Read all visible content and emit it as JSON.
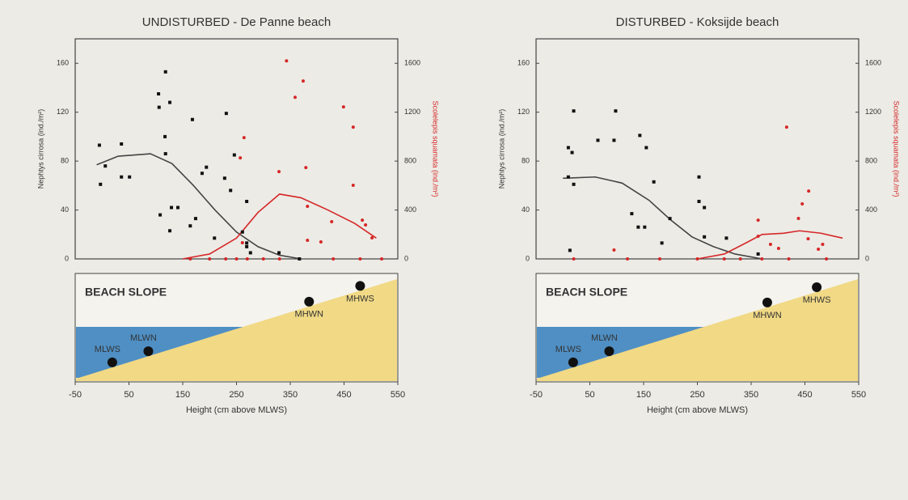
{
  "chart_data": [
    {
      "type": "scatter",
      "title": "UNDISTURBED - De Panne beach",
      "xlabel": "Height (cm above MLWS)",
      "ylabel": "Nephtys cirrosa (ind./m²)",
      "y2label": "Scolelepis squamata (ind./m²)",
      "xlim": [
        -50,
        550
      ],
      "xticks": [
        -50,
        50,
        150,
        250,
        350,
        450,
        550
      ],
      "ylim": [
        0,
        180
      ],
      "yticks": [
        0,
        40,
        80,
        120,
        160
      ],
      "y2lim": [
        0,
        1800
      ],
      "y2ticks": [
        0,
        400,
        800,
        1200,
        1600
      ],
      "series": [
        {
          "color": "#111111",
          "axis": "y",
          "x": [
            -5,
            6,
            -3,
            36,
            36,
            51,
            105,
            118,
            106,
            126,
            117,
            118,
            108,
            129,
            141,
            126,
            164,
            168,
            174,
            186,
            194,
            209,
            231,
            228,
            239,
            246,
            269,
            261,
            269,
            269,
            276,
            329,
            367
          ],
          "values": [
            93,
            76,
            61,
            94,
            67,
            67,
            135,
            153,
            124,
            128,
            100,
            86,
            36,
            42,
            42,
            23,
            27,
            114,
            33,
            70,
            75,
            17,
            119,
            66,
            56,
            85,
            47,
            22,
            13,
            10,
            5,
            5,
            0
          ]
        },
        {
          "color": "#d62728",
          "axis": "y2",
          "x": [
            343,
            374,
            359,
            329,
            264,
            257,
            379,
            449,
            467,
            467,
            382,
            427,
            484,
            490,
            502,
            382,
            407,
            261,
            164,
            200,
            230,
            250,
            270,
            300,
            330,
            430,
            480,
            520
          ],
          "values": [
            1620,
            1455,
            1322,
            714,
            992,
            826,
            747,
            1243,
            1078,
            602,
            430,
            304,
            317,
            278,
            172,
            152,
            139,
            132,
            0,
            0,
            0,
            0,
            0,
            0,
            0,
            0,
            0,
            0
          ]
        }
      ],
      "curves": [
        {
          "color": "#444444",
          "axis": "y",
          "x": [
            -10,
            30,
            90,
            130,
            170,
            210,
            250,
            290,
            330,
            370
          ],
          "values": [
            77,
            84,
            86,
            78,
            60,
            40,
            22,
            10,
            3,
            0
          ]
        },
        {
          "color": "#d62728",
          "axis": "y2",
          "x": [
            150,
            200,
            250,
            290,
            330,
            370,
            420,
            470,
            510
          ],
          "values": [
            0,
            40,
            170,
            380,
            530,
            500,
            400,
            290,
            170
          ]
        }
      ],
      "slope": {
        "label": "BEACH SLOPE",
        "tide_levels": [
          {
            "label": "MLWS",
            "x": 19
          },
          {
            "label": "MLWN",
            "x": 86
          },
          {
            "label": "MHWN",
            "x": 385
          },
          {
            "label": "MHWS",
            "x": 480
          }
        ]
      }
    },
    {
      "type": "scatter",
      "title": "DISTURBED - Koksijde beach",
      "xlabel": "Height (cm above MLWS)",
      "ylabel": "Nephtys cirrosa (ind./m²)",
      "y2label": "Scolelepis squamata (ind./m²)",
      "xlim": [
        -50,
        550
      ],
      "xticks": [
        -50,
        50,
        150,
        250,
        350,
        450,
        550
      ],
      "ylim": [
        0,
        180
      ],
      "yticks": [
        0,
        40,
        80,
        120,
        160
      ],
      "y2lim": [
        0,
        1800
      ],
      "y2ticks": [
        0,
        400,
        800,
        1200,
        1600
      ],
      "series": [
        {
          "color": "#111111",
          "axis": "y",
          "x": [
            10,
            20,
            17,
            10,
            20,
            13,
            65,
            98,
            95,
            143,
            155,
            169,
            128,
            140,
            152,
            184,
            199,
            253,
            253,
            263,
            263,
            304,
            363
          ],
          "values": [
            91,
            121,
            87,
            67,
            61,
            7,
            97,
            121,
            97,
            101,
            91,
            63,
            37,
            26,
            26,
            13,
            33,
            67,
            47,
            42,
            18,
            17,
            4
          ]
        },
        {
          "color": "#d62728",
          "axis": "y2",
          "x": [
            416,
            457,
            445,
            438,
            363,
            456,
            386,
            401,
            483,
            475,
            363,
            95,
            20,
            120,
            180,
            250,
            300,
            330,
            370,
            420,
            490
          ],
          "values": [
            1078,
            555,
            450,
            331,
            317,
            165,
            119,
            86,
            119,
            79,
            185,
            73,
            0,
            0,
            0,
            0,
            0,
            0,
            0,
            0,
            0
          ]
        }
      ],
      "curves": [
        {
          "color": "#444444",
          "axis": "y",
          "x": [
            0,
            60,
            110,
            160,
            200,
            240,
            280,
            320,
            370
          ],
          "values": [
            66,
            67,
            62,
            48,
            32,
            18,
            10,
            4,
            0
          ]
        },
        {
          "color": "#d62728",
          "axis": "y2",
          "x": [
            250,
            300,
            340,
            370,
            410,
            440,
            480,
            520
          ],
          "values": [
            0,
            40,
            130,
            200,
            210,
            230,
            210,
            170
          ]
        }
      ],
      "slope": {
        "label": "BEACH SLOPE",
        "tide_levels": [
          {
            "label": "MLWS",
            "x": 19
          },
          {
            "label": "MLWN",
            "x": 86
          },
          {
            "label": "MHWN",
            "x": 380
          },
          {
            "label": "MHWS",
            "x": 472
          }
        ]
      }
    }
  ]
}
